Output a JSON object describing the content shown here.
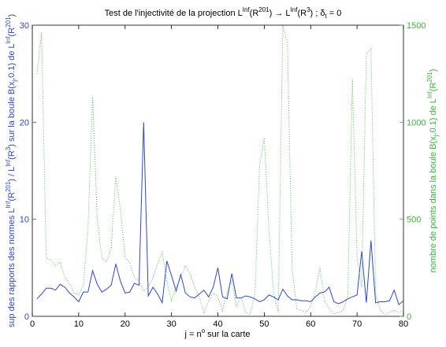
{
  "chart_data": {
    "type": "line",
    "title": [
      "Test de l'injectivité de la projection L",
      "Inf",
      "(R",
      "201",
      ") → L",
      "Inf",
      "(R",
      "3",
      ") ; δ",
      "t",
      " = 0"
    ],
    "x_label": [
      "j = n",
      "o",
      " sur la carte"
    ],
    "y_label": [
      "sup des rapports des normes L",
      "Inf",
      "(R",
      "201",
      ") / L",
      "Inf",
      "(R",
      "3",
      ") sur la boule B(x",
      "j",
      ",0.1) de L",
      "Inf",
      "(R",
      "201",
      ")"
    ],
    "y2_label": [
      "nombre de points dans la boule B(x",
      "j",
      ",0.1) de L",
      "Inf",
      "(R",
      "201",
      ")"
    ],
    "x": [
      1,
      2,
      3,
      4,
      5,
      6,
      7,
      8,
      9,
      10,
      11,
      12,
      13,
      14,
      15,
      16,
      17,
      18,
      19,
      20,
      21,
      22,
      23,
      24,
      25,
      26,
      27,
      28,
      29,
      30,
      31,
      32,
      33,
      34,
      35,
      36,
      37,
      38,
      39,
      40,
      41,
      42,
      43,
      44,
      45,
      46,
      47,
      48,
      49,
      50,
      51,
      52,
      53,
      54,
      55,
      56,
      57,
      58,
      59,
      60,
      61,
      62,
      63,
      64,
      65,
      66,
      67,
      68,
      69,
      70,
      71,
      72,
      73,
      74,
      75,
      76,
      77,
      78,
      79,
      80
    ],
    "series": [
      {
        "color": "#2a45e0",
        "style": "solid",
        "axis": "y",
        "values": [
          1.8,
          2.3,
          2.9,
          2.9,
          2.7,
          3.3,
          3.0,
          2.4,
          2.0,
          1.5,
          2.5,
          2.5,
          4.7,
          3.3,
          2.5,
          2.8,
          3.2,
          5.4,
          3.6,
          2.4,
          2.5,
          3.4,
          3.2,
          20,
          2.1,
          3.0,
          2.3,
          1.4,
          5.7,
          4.2,
          2.6,
          4.3,
          2.4,
          2.0,
          1.9,
          2.3,
          2.7,
          2.0,
          3.0,
          5.0,
          2.0,
          1.8,
          4.4,
          1.9,
          1.9,
          2.1,
          2.0,
          1.8,
          1.5,
          1.7,
          2.2,
          2.0,
          1.7,
          2.8,
          2.1,
          1.7,
          1.7,
          1.6,
          1.6,
          1.5,
          2.0,
          2.4,
          2.5,
          3.0,
          1.5,
          1.3,
          1.5,
          1.8,
          2.0,
          2.2,
          6.7,
          1.4,
          7.8,
          1.4,
          1.5,
          1.5,
          1.6,
          2.7,
          1.2,
          1.6
        ]
      },
      {
        "color": "#33b833",
        "style": "dotted",
        "axis": "y2",
        "values": [
          1250,
          1460,
          300,
          290,
          260,
          280,
          200,
          170,
          120,
          110,
          160,
          450,
          1130,
          500,
          300,
          280,
          350,
          720,
          550,
          300,
          280,
          200,
          180,
          130,
          150,
          200,
          270,
          330,
          180,
          80,
          150,
          200,
          260,
          220,
          150,
          100,
          20,
          80,
          120,
          100,
          30,
          130,
          180,
          50,
          100,
          20,
          10,
          120,
          780,
          920,
          450,
          120,
          20,
          1500,
          1400,
          250,
          40,
          30,
          20,
          50,
          130,
          250,
          80,
          40,
          10,
          20,
          30,
          100,
          1220,
          300,
          150,
          1350,
          1380,
          120,
          30,
          10,
          20,
          30,
          20,
          30
        ]
      }
    ],
    "xlim": [
      0,
      80
    ],
    "xticks": [
      0,
      10,
      20,
      30,
      40,
      50,
      60,
      70,
      80
    ],
    "ylim": [
      0,
      30
    ],
    "yticks": [
      0,
      10,
      20,
      30
    ],
    "y_color": "#2a45e0",
    "y2lim": [
      0,
      1500
    ],
    "y2ticks": [
      0,
      500,
      1000,
      1500
    ],
    "y2_color": "#33b833"
  }
}
